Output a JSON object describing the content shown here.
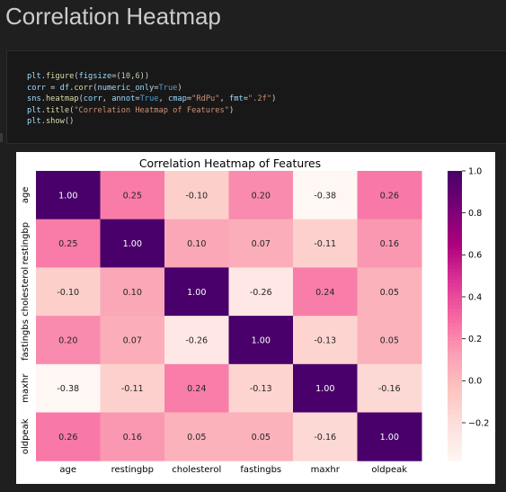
{
  "markdown": {
    "heading": "Correlation Heatmap"
  },
  "code": {
    "lines": [
      [
        {
          "t": "plt",
          "c": "var"
        },
        {
          "t": ".",
          "c": "plain"
        },
        {
          "t": "figure",
          "c": "fn"
        },
        {
          "t": "(",
          "c": "plain"
        },
        {
          "t": "figsize",
          "c": "var"
        },
        {
          "t": "=(",
          "c": "plain"
        },
        {
          "t": "10",
          "c": "num"
        },
        {
          "t": ",",
          "c": "plain"
        },
        {
          "t": "6",
          "c": "num"
        },
        {
          "t": "))",
          "c": "plain"
        }
      ],
      [
        {
          "t": "corr",
          "c": "var"
        },
        {
          "t": " = ",
          "c": "plain"
        },
        {
          "t": "df",
          "c": "var"
        },
        {
          "t": ".",
          "c": "plain"
        },
        {
          "t": "corr",
          "c": "fn"
        },
        {
          "t": "(",
          "c": "plain"
        },
        {
          "t": "numeric_only",
          "c": "var"
        },
        {
          "t": "=",
          "c": "plain"
        },
        {
          "t": "True",
          "c": "kw"
        },
        {
          "t": ")",
          "c": "plain"
        }
      ],
      [
        {
          "t": "sns",
          "c": "var"
        },
        {
          "t": ".",
          "c": "plain"
        },
        {
          "t": "heatmap",
          "c": "fn"
        },
        {
          "t": "(",
          "c": "plain"
        },
        {
          "t": "corr",
          "c": "var"
        },
        {
          "t": ", ",
          "c": "plain"
        },
        {
          "t": "annot",
          "c": "var"
        },
        {
          "t": "=",
          "c": "plain"
        },
        {
          "t": "True",
          "c": "kw"
        },
        {
          "t": ", ",
          "c": "plain"
        },
        {
          "t": "cmap",
          "c": "var"
        },
        {
          "t": "=",
          "c": "plain"
        },
        {
          "t": "\"RdPu\"",
          "c": "str"
        },
        {
          "t": ", ",
          "c": "plain"
        },
        {
          "t": "fmt",
          "c": "var"
        },
        {
          "t": "=",
          "c": "plain"
        },
        {
          "t": "\".2f\"",
          "c": "str"
        },
        {
          "t": ")",
          "c": "plain"
        }
      ],
      [
        {
          "t": "plt",
          "c": "var"
        },
        {
          "t": ".",
          "c": "plain"
        },
        {
          "t": "title",
          "c": "fn"
        },
        {
          "t": "(",
          "c": "plain"
        },
        {
          "t": "\"Correlation Heatmap of Features\"",
          "c": "str"
        },
        {
          "t": ")",
          "c": "plain"
        }
      ],
      [
        {
          "t": "plt",
          "c": "var"
        },
        {
          "t": ".",
          "c": "plain"
        },
        {
          "t": "show",
          "c": "fn"
        },
        {
          "t": "()",
          "c": "plain"
        }
      ]
    ]
  },
  "chart_data": {
    "type": "heatmap",
    "title": "Correlation Heatmap of Features",
    "cmap": "RdPu",
    "labels": [
      "age",
      "restingbp",
      "cholesterol",
      "fastingbs",
      "maxhr",
      "oldpeak"
    ],
    "values": [
      [
        1.0,
        0.25,
        -0.1,
        0.2,
        -0.38,
        0.26
      ],
      [
        0.25,
        1.0,
        0.1,
        0.07,
        -0.11,
        0.16
      ],
      [
        -0.1,
        0.1,
        1.0,
        -0.26,
        0.24,
        0.05
      ],
      [
        0.2,
        0.07,
        -0.26,
        1.0,
        -0.13,
        0.05
      ],
      [
        -0.38,
        -0.11,
        0.24,
        -0.13,
        1.0,
        -0.16
      ],
      [
        0.26,
        0.16,
        0.05,
        0.05,
        -0.16,
        1.0
      ]
    ],
    "value_format": ".2f",
    "colorbar": {
      "vmin": -0.38,
      "vmax": 1.0,
      "ticks": [
        1.0,
        0.8,
        0.6,
        0.4,
        0.2,
        0.0,
        -0.2
      ],
      "tick_labels": [
        "1.0",
        "0.8",
        "0.6",
        "0.4",
        "0.2",
        "0.0",
        "−0.2"
      ]
    },
    "grid": false
  }
}
